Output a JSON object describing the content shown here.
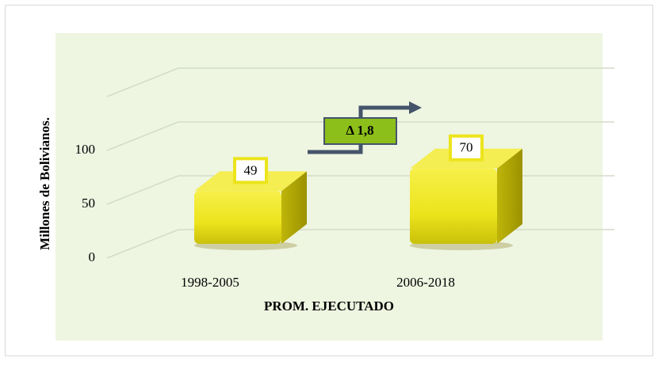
{
  "chart_data": {
    "type": "bar3d",
    "categories": [
      "1998-2005",
      "2006-2018"
    ],
    "values": [
      49,
      70
    ],
    "color": "#ece41c",
    "ylabel": "Millones de Bolivianos.",
    "xlabel": "PROM. EJECUTADO",
    "annotation": "Δ 1,8",
    "ylim": [
      0,
      150
    ],
    "yticks": [
      0,
      50,
      100
    ],
    "grid": true
  }
}
